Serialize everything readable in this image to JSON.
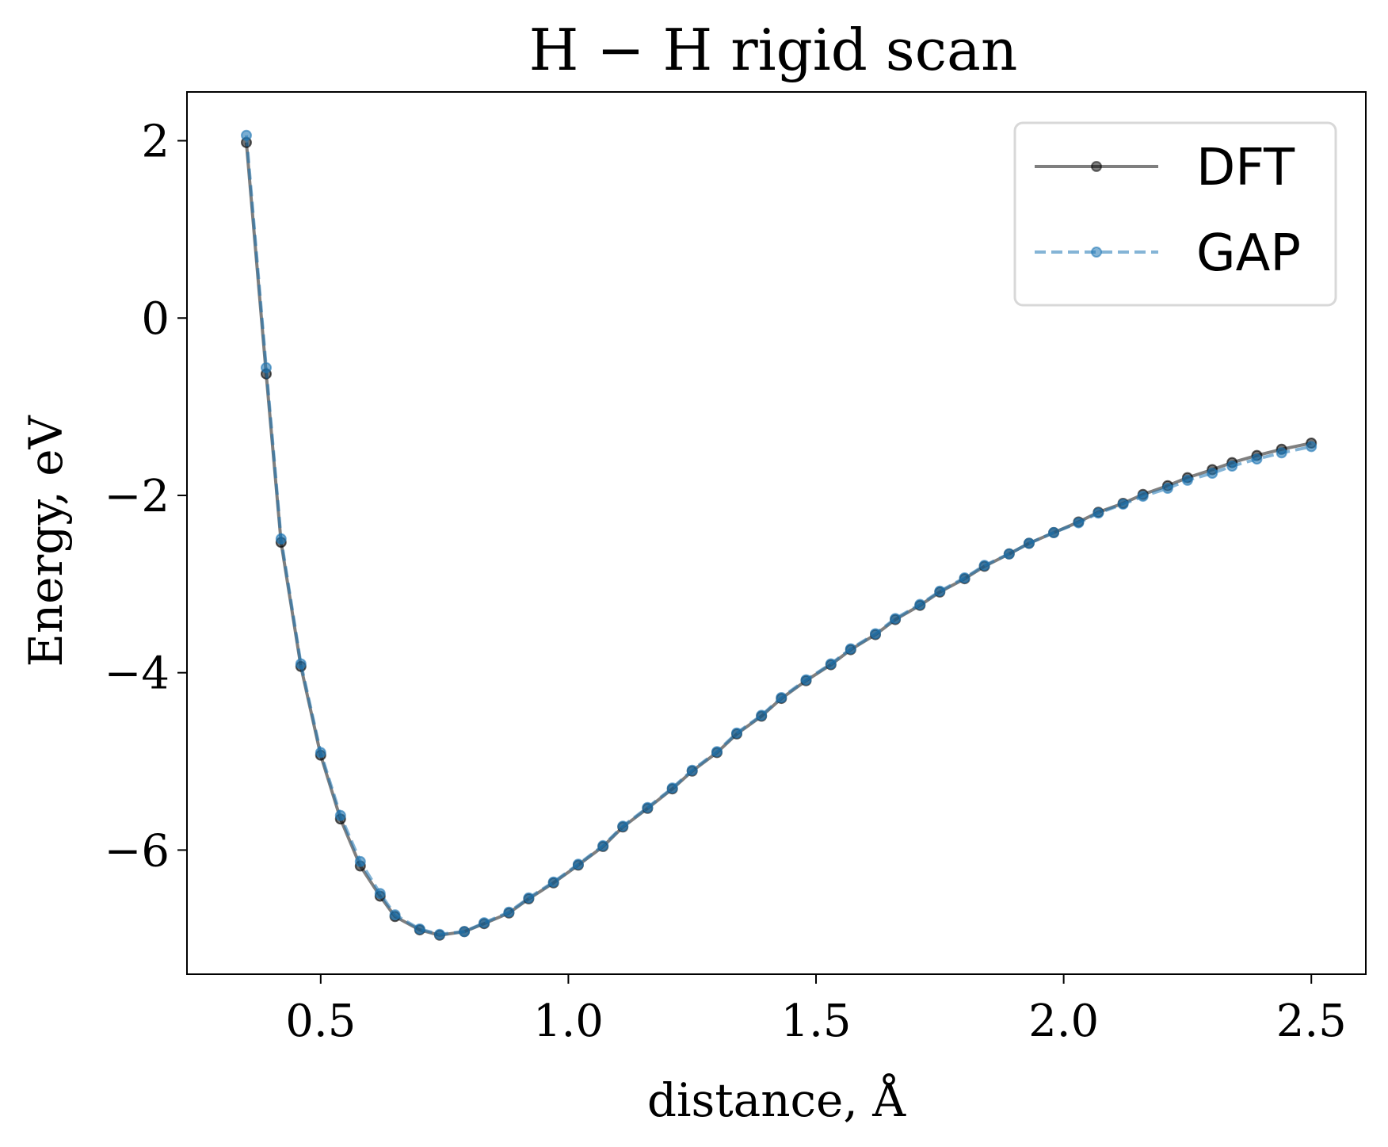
{
  "chart_data": {
    "type": "line",
    "title": "H − H rigid scan",
    "xlabel": "distance,  Å",
    "ylabel": "Energy,  eV",
    "xlim": [
      0.23,
      2.61
    ],
    "ylim": [
      -7.4,
      2.55
    ],
    "xticks": [
      {
        "value": 0.5,
        "label": "0.5"
      },
      {
        "value": 1.0,
        "label": "1.0"
      },
      {
        "value": 1.5,
        "label": "1.5"
      },
      {
        "value": 2.0,
        "label": "2.0"
      },
      {
        "value": 2.5,
        "label": "2.5"
      }
    ],
    "yticks": [
      {
        "value": 2,
        "label": "2"
      },
      {
        "value": 0,
        "label": "0"
      },
      {
        "value": -2,
        "label": "−2"
      },
      {
        "value": -4,
        "label": "−4"
      },
      {
        "value": -6,
        "label": "−6"
      }
    ],
    "grid": false,
    "legend_position": "top-right",
    "x": [
      0.35,
      0.39,
      0.42,
      0.46,
      0.5,
      0.54,
      0.58,
      0.62,
      0.65,
      0.7,
      0.74,
      0.79,
      0.83,
      0.88,
      0.92,
      0.97,
      1.02,
      1.07,
      1.11,
      1.16,
      1.21,
      1.25,
      1.3,
      1.34,
      1.39,
      1.43,
      1.48,
      1.53,
      1.57,
      1.62,
      1.66,
      1.71,
      1.75,
      1.8,
      1.84,
      1.89,
      1.93,
      1.98,
      2.03,
      2.07,
      2.12,
      2.16,
      2.21,
      2.25,
      2.3,
      2.34,
      2.39,
      2.44,
      2.5
    ],
    "series": [
      {
        "name": "DFT",
        "color": "#000000",
        "line_style": "solid",
        "marker": "dot",
        "values": [
          1.98,
          -0.63,
          -2.53,
          -3.93,
          -4.93,
          -5.65,
          -6.18,
          -6.52,
          -6.75,
          -6.9,
          -6.96,
          -6.92,
          -6.83,
          -6.71,
          -6.55,
          -6.37,
          -6.17,
          -5.96,
          -5.74,
          -5.53,
          -5.31,
          -5.11,
          -4.9,
          -4.69,
          -4.49,
          -4.29,
          -4.09,
          -3.91,
          -3.74,
          -3.57,
          -3.4,
          -3.24,
          -3.09,
          -2.94,
          -2.8,
          -2.66,
          -2.54,
          -2.42,
          -2.3,
          -2.19,
          -2.09,
          -1.99,
          -1.89,
          -1.8,
          -1.71,
          -1.63,
          -1.55,
          -1.48,
          -1.41
        ]
      },
      {
        "name": "GAP",
        "color": "#1f77b4",
        "line_style": "dashed",
        "marker": "dot",
        "values": [
          2.06,
          -0.56,
          -2.49,
          -3.9,
          -4.9,
          -5.61,
          -6.13,
          -6.49,
          -6.73,
          -6.89,
          -6.95,
          -6.92,
          -6.82,
          -6.7,
          -6.54,
          -6.36,
          -6.16,
          -5.95,
          -5.73,
          -5.52,
          -5.3,
          -5.1,
          -4.89,
          -4.68,
          -4.48,
          -4.28,
          -4.08,
          -3.9,
          -3.73,
          -3.56,
          -3.39,
          -3.23,
          -3.08,
          -2.93,
          -2.79,
          -2.66,
          -2.54,
          -2.42,
          -2.31,
          -2.2,
          -2.1,
          -2.01,
          -1.92,
          -1.83,
          -1.75,
          -1.67,
          -1.59,
          -1.52,
          -1.45
        ]
      }
    ]
  }
}
